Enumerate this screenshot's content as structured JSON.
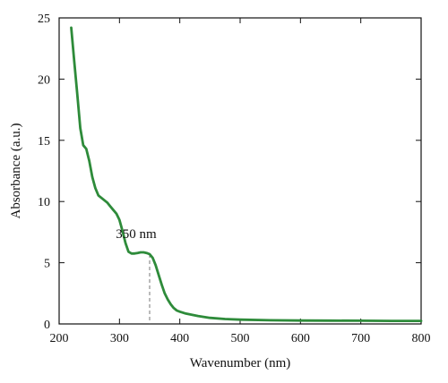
{
  "chart_data": {
    "type": "line",
    "title": "",
    "xlabel": "Wavenumber (nm)",
    "ylabel": "Absorbance (a.u.)",
    "xlim": [
      200,
      800
    ],
    "ylim": [
      0,
      25
    ],
    "xticks": [
      200,
      300,
      400,
      500,
      600,
      700,
      800
    ],
    "yticks": [
      0,
      5,
      10,
      15,
      20,
      25
    ],
    "grid": false,
    "series": [
      {
        "color": "#2e8b3a",
        "x": [
          220,
          225,
          230,
          235,
          240,
          245,
          250,
          255,
          260,
          265,
          270,
          275,
          280,
          285,
          290,
          295,
          300,
          305,
          310,
          315,
          320,
          325,
          330,
          335,
          340,
          345,
          350,
          355,
          360,
          365,
          370,
          375,
          380,
          385,
          390,
          395,
          400,
          410,
          420,
          430,
          450,
          475,
          500,
          550,
          600,
          650,
          700,
          750,
          800
        ],
        "y": [
          24.2,
          21.5,
          18.8,
          16.0,
          14.6,
          14.3,
          13.3,
          12.0,
          11.1,
          10.5,
          10.3,
          10.1,
          9.9,
          9.6,
          9.3,
          9.0,
          8.5,
          7.6,
          6.6,
          5.9,
          5.75,
          5.75,
          5.8,
          5.85,
          5.85,
          5.8,
          5.7,
          5.4,
          4.8,
          4.0,
          3.2,
          2.5,
          2.0,
          1.6,
          1.3,
          1.1,
          1.0,
          0.85,
          0.75,
          0.65,
          0.5,
          0.4,
          0.35,
          0.3,
          0.28,
          0.27,
          0.26,
          0.25,
          0.25
        ]
      }
    ],
    "annotations": [
      {
        "text": "350 nm",
        "x": 350,
        "y": 5.7
      }
    ]
  }
}
